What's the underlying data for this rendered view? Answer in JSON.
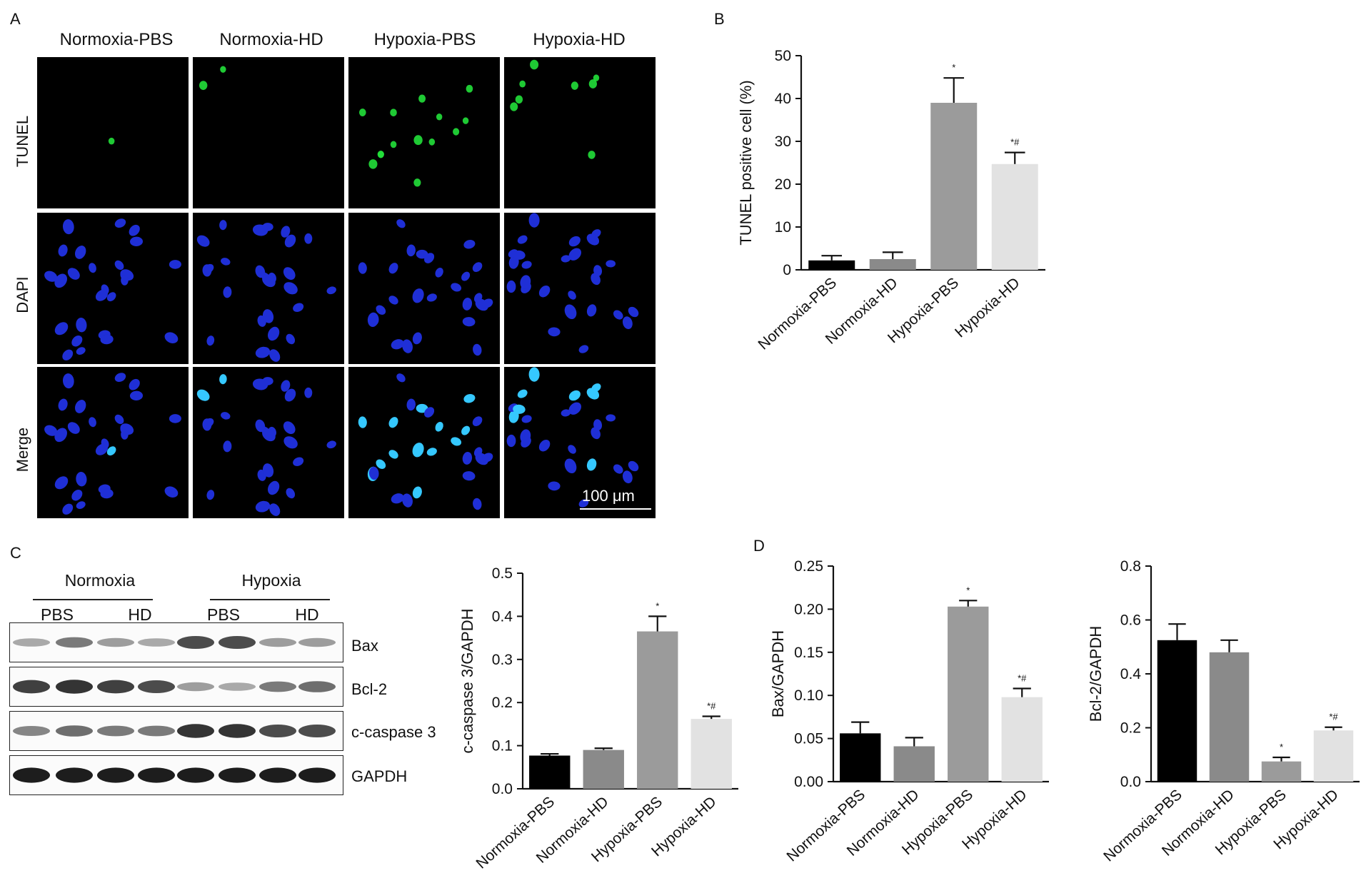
{
  "panels": {
    "a": "A",
    "b": "B",
    "c": "C",
    "d": "D"
  },
  "microscopy": {
    "columns": [
      "Normoxia-PBS",
      "Normoxia-HD",
      "Hypoxia-PBS",
      "Hypoxia-HD"
    ],
    "rows": [
      "TUNEL",
      "DAPI",
      "Merge"
    ],
    "scale_bar": "100 μm"
  },
  "western_blot": {
    "groups": [
      "Normoxia",
      "Hypoxia"
    ],
    "lanes": [
      "PBS",
      "HD",
      "PBS",
      "HD"
    ],
    "proteins": [
      "Bax",
      "Bcl-2",
      "c-caspase 3",
      "GAPDH"
    ]
  },
  "chart_data": [
    {
      "id": "tunel",
      "type": "bar",
      "categories": [
        "Normoxia-PBS",
        "Normoxia-HD",
        "Hypoxia-PBS",
        "Hypoxia-HD"
      ],
      "values": [
        2.2,
        2.5,
        39.0,
        24.7
      ],
      "errors": [
        1.1,
        1.6,
        5.8,
        2.7
      ],
      "annotations": [
        "",
        "",
        "*",
        "*#"
      ],
      "colors": [
        "#000000",
        "#8a8a8a",
        "#9b9b9b",
        "#e2e2e2"
      ],
      "ylabel": "TUNEL positive cell (%)",
      "ylim": [
        0,
        50
      ],
      "yticks": [
        "0",
        "10",
        "20",
        "30",
        "40",
        "50"
      ]
    },
    {
      "id": "caspase",
      "type": "bar",
      "categories": [
        "Normoxia-PBS",
        "Normoxia-HD",
        "Hypoxia-PBS",
        "Hypoxia-HD"
      ],
      "values": [
        0.077,
        0.09,
        0.365,
        0.162
      ],
      "errors": [
        0.004,
        0.004,
        0.035,
        0.006
      ],
      "annotations": [
        "",
        "",
        "*",
        "*#"
      ],
      "colors": [
        "#000000",
        "#8a8a8a",
        "#9b9b9b",
        "#e2e2e2"
      ],
      "ylabel": "c-caspase 3/GAPDH",
      "ylim": [
        0,
        0.5
      ],
      "yticks": [
        "0.0",
        "0.1",
        "0.2",
        "0.3",
        "0.4",
        "0.5"
      ]
    },
    {
      "id": "bax",
      "type": "bar",
      "categories": [
        "Normoxia-PBS",
        "Normoxia-HD",
        "Hypoxia-PBS",
        "Hypoxia-HD"
      ],
      "values": [
        0.056,
        0.041,
        0.203,
        0.098
      ],
      "errors": [
        0.013,
        0.01,
        0.007,
        0.01
      ],
      "annotations": [
        "",
        "",
        "*",
        "*#"
      ],
      "colors": [
        "#000000",
        "#8a8a8a",
        "#9b9b9b",
        "#e2e2e2"
      ],
      "ylabel": "Bax/GAPDH",
      "ylim": [
        0,
        0.25
      ],
      "yticks": [
        "0.00",
        "0.05",
        "0.10",
        "0.15",
        "0.20",
        "0.25"
      ]
    },
    {
      "id": "bcl2",
      "type": "bar",
      "categories": [
        "Normoxia-PBS",
        "Normoxia-HD",
        "Hypoxia-PBS",
        "Hypoxia-HD"
      ],
      "values": [
        0.525,
        0.48,
        0.075,
        0.19
      ],
      "errors": [
        0.06,
        0.045,
        0.015,
        0.012
      ],
      "annotations": [
        "",
        "",
        "*",
        "*#"
      ],
      "colors": [
        "#000000",
        "#8a8a8a",
        "#9b9b9b",
        "#e2e2e2"
      ],
      "ylabel": "Bcl-2/GAPDH",
      "ylim": [
        0,
        0.8
      ],
      "yticks": [
        "0.0",
        "0.2",
        "0.4",
        "0.6",
        "0.8"
      ]
    }
  ]
}
